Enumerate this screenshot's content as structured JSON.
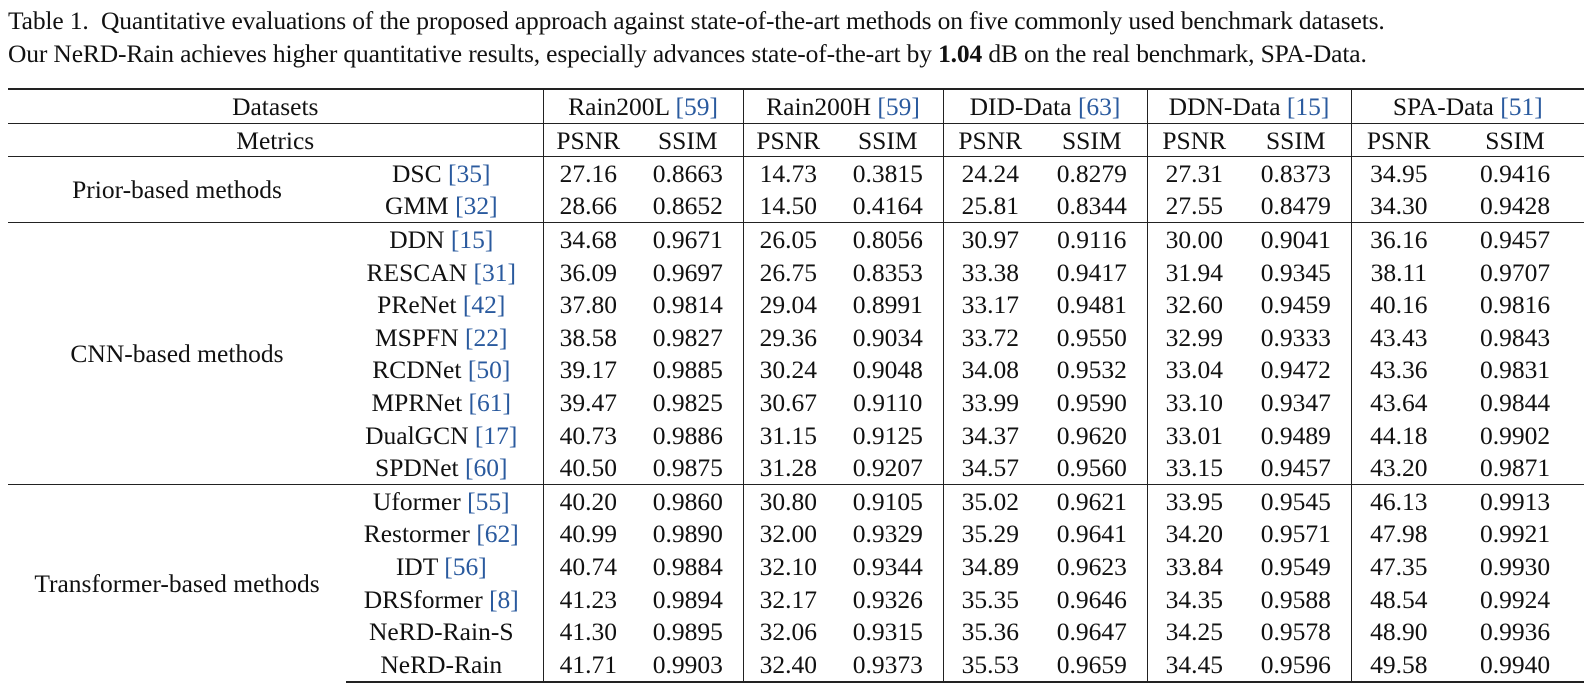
{
  "caption": {
    "label": "Table 1.",
    "line1_rest": "Quantitative evaluations of the proposed approach against state-of-the-art methods on five commonly used benchmark datasets.",
    "line2_before": "Our NeRD-Rain achieves higher quantitative results, especially advances state-of-the-art by ",
    "line2_bold": "1.04",
    "line2_after": " dB on the real benchmark, SPA-Data."
  },
  "table": {
    "datasets_label": "Datasets",
    "metrics_label": "Metrics",
    "datasets": [
      {
        "name": "Rain200L ",
        "cite": "[59]"
      },
      {
        "name": "Rain200H ",
        "cite": "[59]"
      },
      {
        "name": "DID-Data ",
        "cite": "[63]"
      },
      {
        "name": "DDN-Data ",
        "cite": "[15]"
      },
      {
        "name": "SPA-Data ",
        "cite": "[51]"
      }
    ],
    "metric_names": [
      "PSNR",
      "SSIM"
    ],
    "groups": [
      {
        "name": "Prior-based methods",
        "rows": [
          {
            "method": "DSC ",
            "cite": "[35]",
            "values": [
              "27.16",
              "0.8663",
              "14.73",
              "0.3815",
              "24.24",
              "0.8279",
              "27.31",
              "0.8373",
              "34.95",
              "0.9416"
            ]
          },
          {
            "method": "GMM ",
            "cite": "[32]",
            "values": [
              "28.66",
              "0.8652",
              "14.50",
              "0.4164",
              "25.81",
              "0.8344",
              "27.55",
              "0.8479",
              "34.30",
              "0.9428"
            ]
          }
        ]
      },
      {
        "name": "CNN-based methods",
        "rows": [
          {
            "method": "DDN ",
            "cite": "[15]",
            "values": [
              "34.68",
              "0.9671",
              "26.05",
              "0.8056",
              "30.97",
              "0.9116",
              "30.00",
              "0.9041",
              "36.16",
              "0.9457"
            ]
          },
          {
            "method": "RESCAN ",
            "cite": "[31]",
            "values": [
              "36.09",
              "0.9697",
              "26.75",
              "0.8353",
              "33.38",
              "0.9417",
              "31.94",
              "0.9345",
              "38.11",
              "0.9707"
            ]
          },
          {
            "method": "PReNet ",
            "cite": "[42]",
            "values": [
              "37.80",
              "0.9814",
              "29.04",
              "0.8991",
              "33.17",
              "0.9481",
              "32.60",
              "0.9459",
              "40.16",
              "0.9816"
            ]
          },
          {
            "method": "MSPFN ",
            "cite": "[22]",
            "values": [
              "38.58",
              "0.9827",
              "29.36",
              "0.9034",
              "33.72",
              "0.9550",
              "32.99",
              "0.9333",
              "43.43",
              "0.9843"
            ]
          },
          {
            "method": "RCDNet ",
            "cite": "[50]",
            "values": [
              "39.17",
              "0.9885",
              "30.24",
              "0.9048",
              "34.08",
              "0.9532",
              "33.04",
              "0.9472",
              "43.36",
              "0.9831"
            ]
          },
          {
            "method": "MPRNet ",
            "cite": "[61]",
            "values": [
              "39.47",
              "0.9825",
              "30.67",
              "0.9110",
              "33.99",
              "0.9590",
              "33.10",
              "0.9347",
              "43.64",
              "0.9844"
            ]
          },
          {
            "method": "DualGCN ",
            "cite": "[17]",
            "values": [
              "40.73",
              "0.9886",
              "31.15",
              "0.9125",
              "34.37",
              "0.9620",
              "33.01",
              "0.9489",
              "44.18",
              "0.9902"
            ]
          },
          {
            "method": "SPDNet ",
            "cite": "[60]",
            "values": [
              "40.50",
              "0.9875",
              "31.28",
              "0.9207",
              "34.57",
              "0.9560",
              "33.15",
              "0.9457",
              "43.20",
              "0.9871"
            ]
          }
        ]
      },
      {
        "name": "Transformer-based methods",
        "rows": [
          {
            "method": "Uformer ",
            "cite": "[55]",
            "values": [
              "40.20",
              "0.9860",
              "30.80",
              "0.9105",
              "35.02",
              "0.9621",
              "33.95",
              "0.9545",
              "46.13",
              "0.9913"
            ]
          },
          {
            "method": "Restormer ",
            "cite": "[62]",
            "values": [
              "40.99",
              "0.9890",
              "32.00",
              "0.9329",
              "35.29",
              "0.9641",
              "34.20",
              "0.9571",
              "47.98",
              "0.9921"
            ]
          },
          {
            "method": "IDT ",
            "cite": "[56]",
            "values": [
              "40.74",
              "0.9884",
              "32.10",
              "0.9344",
              "34.89",
              "0.9623",
              "33.84",
              "0.9549",
              "47.35",
              "0.9930"
            ]
          },
          {
            "method": "DRSformer ",
            "cite": "[8]",
            "values": [
              "41.23",
              "0.9894",
              "32.17",
              "0.9326",
              "35.35",
              "0.9646",
              "34.35",
              "0.9588",
              "48.54",
              "0.9924"
            ]
          },
          {
            "method": "NeRD-Rain-S",
            "cite": "",
            "values": [
              "41.30",
              "0.9895",
              "32.06",
              "0.9315",
              "35.36",
              "0.9647",
              "34.25",
              "0.9578",
              "48.90",
              "0.9936"
            ]
          },
          {
            "method": "NeRD-Rain",
            "cite": "",
            "bold": true,
            "values": [
              "41.71",
              "0.9903",
              "32.40",
              "0.9373",
              "35.53",
              "0.9659",
              "34.45",
              "0.9596",
              "49.58",
              "0.9940"
            ]
          }
        ]
      }
    ]
  }
}
